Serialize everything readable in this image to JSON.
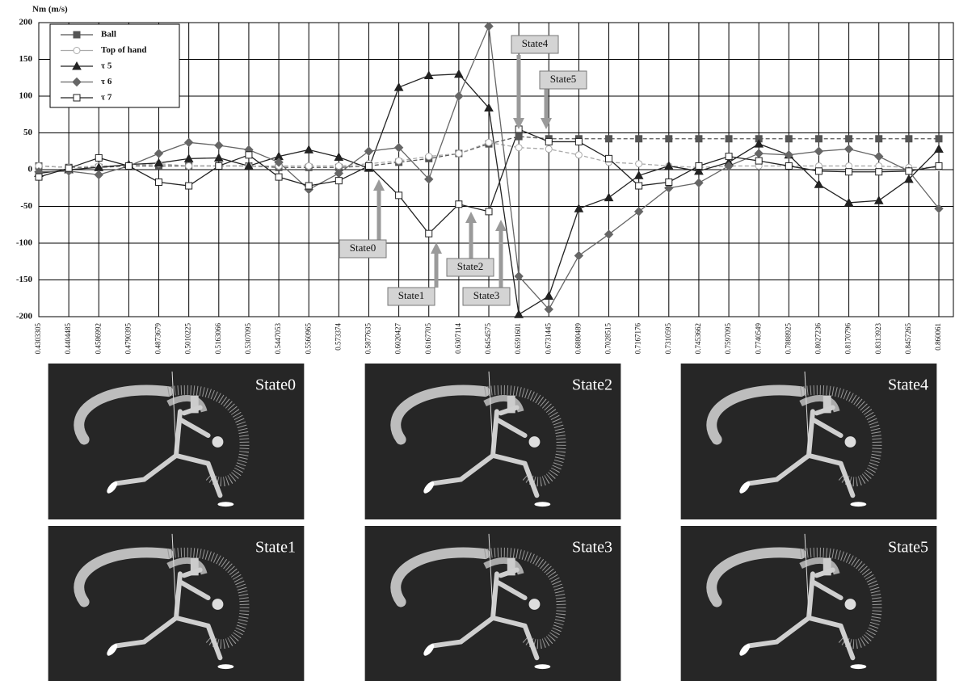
{
  "chart_data": {
    "type": "line",
    "y_label": "Nm (m/s)",
    "categories": [
      "0.4303305",
      "0.4404485",
      "0.4586992",
      "0.4790395",
      "0.4873679",
      "0.5010225",
      "0.5163066",
      "0.5307095",
      "0.5447053",
      "0.5560965",
      "0.573374",
      "0.5877635",
      "0.6020427",
      "0.6167705",
      "0.6307114",
      "0.6454575",
      "0.6591601",
      "0.6731445",
      "0.6880489",
      "0.7028515",
      "0.7167176",
      "0.7310595",
      "0.7453662",
      "0.7597095",
      "0.7740549",
      "0.7888925",
      "0.8027236",
      "0.8170796",
      "0.8313923",
      "0.8457265",
      "0.860061"
    ],
    "series": [
      {
        "name": "Ball",
        "color": "#555555",
        "marker": "square-filled",
        "dashed": true,
        "values": [
          5,
          3,
          3,
          5,
          5,
          5,
          5,
          5,
          3,
          3,
          3,
          5,
          10,
          15,
          22,
          35,
          45,
          42,
          42,
          42,
          42,
          42,
          42,
          42,
          42,
          42,
          42,
          42,
          42,
          42,
          42
        ]
      },
      {
        "name": "Top of hand",
        "color": "#aaaaaa",
        "marker": "circle-open",
        "dashed": true,
        "values": [
          5,
          3,
          5,
          5,
          8,
          5,
          5,
          5,
          5,
          5,
          5,
          8,
          12,
          18,
          22,
          37,
          30,
          28,
          20,
          10,
          8,
          5,
          3,
          5,
          5,
          5,
          5,
          5,
          5,
          3,
          3
        ]
      },
      {
        "name": "τ 5",
        "color": "#222222",
        "marker": "triangle-filled",
        "dashed": false,
        "values": [
          -5,
          0,
          3,
          7,
          9,
          15,
          16,
          5,
          18,
          27,
          17,
          2,
          112,
          128,
          130,
          84,
          -197,
          -172,
          -53,
          -38,
          -8,
          5,
          -2,
          10,
          35,
          20,
          -20,
          -45,
          -42,
          -13,
          28
        ]
      },
      {
        "name": "τ 6",
        "color": "#666666",
        "marker": "diamond-filled",
        "dashed": false,
        "values": [
          -3,
          -2,
          -7,
          5,
          22,
          37,
          33,
          27,
          10,
          -27,
          -5,
          25,
          30,
          -13,
          100,
          195,
          -145,
          -190,
          -117,
          -88,
          -57,
          -25,
          -18,
          5,
          22,
          20,
          25,
          28,
          18,
          -2,
          -53
        ]
      },
      {
        "name": "τ 7",
        "color": "#222222",
        "marker": "square-open",
        "dashed": false,
        "values": [
          -10,
          2,
          16,
          5,
          -17,
          -22,
          5,
          20,
          -10,
          -22,
          -15,
          5,
          -35,
          -87,
          -47,
          -57,
          55,
          38,
          38,
          15,
          -22,
          -17,
          5,
          18,
          12,
          5,
          -2,
          -3,
          -3,
          -2,
          5
        ]
      }
    ],
    "ylim": [
      -200,
      200
    ],
    "yticks": [
      -200,
      -150,
      -100,
      -50,
      0,
      50,
      100,
      150,
      200
    ],
    "grid": true,
    "legend": "upper-left",
    "annotations": [
      "State0",
      "State1",
      "State2",
      "State3",
      "State4",
      "State5"
    ]
  },
  "panels": [
    {
      "label": "State0"
    },
    {
      "label": "State1"
    },
    {
      "label": "State2"
    },
    {
      "label": "State3"
    },
    {
      "label": "State4"
    },
    {
      "label": "State5"
    }
  ]
}
